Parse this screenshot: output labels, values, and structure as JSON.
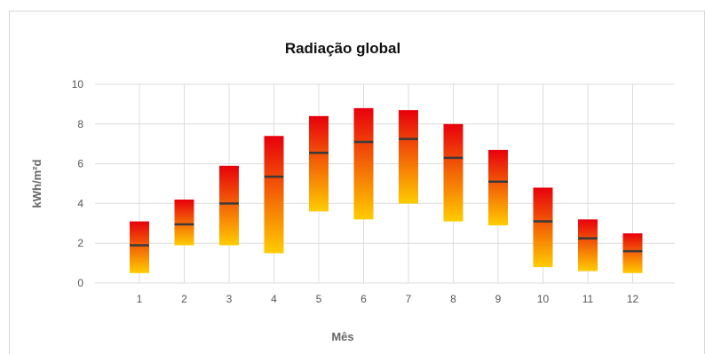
{
  "chart_data": {
    "type": "bar",
    "title": "Radiação global",
    "xlabel": "Mês",
    "ylabel": "kWh/m²d",
    "categories": [
      "1",
      "2",
      "3",
      "4",
      "5",
      "6",
      "7",
      "8",
      "9",
      "10",
      "11",
      "12"
    ],
    "ylim": [
      0,
      10
    ],
    "yticks": [
      "0",
      "2",
      "4",
      "6",
      "8",
      "10"
    ],
    "grid": true,
    "series": [
      {
        "name": "min",
        "values": [
          0.5,
          1.9,
          1.9,
          1.5,
          3.6,
          3.2,
          4.0,
          3.1,
          2.9,
          0.8,
          0.6,
          0.5
        ]
      },
      {
        "name": "max",
        "values": [
          3.1,
          4.2,
          5.9,
          7.4,
          8.4,
          8.8,
          8.7,
          8.0,
          6.7,
          4.8,
          3.2,
          2.5
        ]
      },
      {
        "name": "mean",
        "values": [
          1.9,
          2.95,
          4.0,
          5.35,
          6.55,
          7.1,
          7.25,
          6.3,
          5.1,
          3.1,
          2.25,
          1.6
        ]
      }
    ],
    "colors": {
      "bar_top": "#e8000c",
      "bar_bottom": "#ffcc00",
      "mean_line": "#3a3a3a",
      "grid": "#dcdcdc"
    }
  }
}
